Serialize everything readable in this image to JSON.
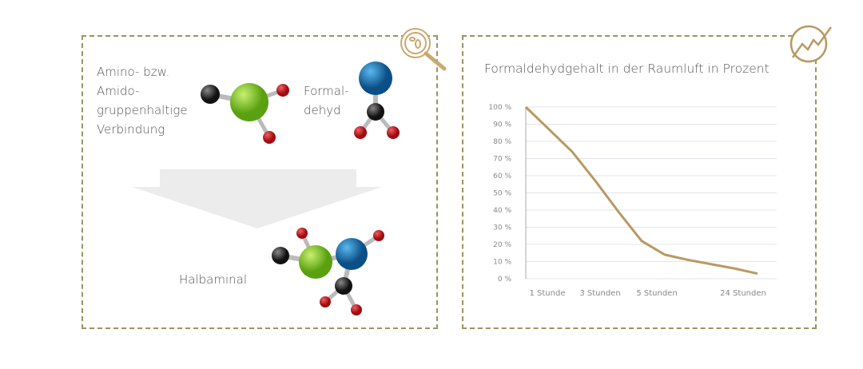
{
  "left_panel": {
    "reactant1_label": [
      "Amino- bzw.",
      "Amido-",
      "gruppenhaltige",
      "Verbindung"
    ],
    "reactant2_label": [
      "Formal-",
      "dehyd"
    ],
    "product_label": "Halbaminal",
    "icon": "magnifier-bacteria-icon"
  },
  "right_panel": {
    "icon": "trend-chart-icon"
  },
  "colors": {
    "accent": "#b79a62",
    "border": "#9a9460",
    "green": "#7cc520",
    "blue": "#1f6fa8",
    "red": "#c0141a",
    "carbon": "#333333"
  },
  "chart_data": {
    "type": "line",
    "title": "Formaldehydgehalt in der Raumluft in Prozent",
    "yticks": [
      "0 %",
      "10 %",
      "20 %",
      "30 %",
      "40 %",
      "50 %",
      "60 %",
      "70 %",
      "80 %",
      "90 %",
      "100 %"
    ],
    "ylim": [
      0,
      100
    ],
    "xticks": [
      "1 Stunde",
      "3 Stunden",
      "5 Stunden",
      "24 Stunden"
    ],
    "grid": true,
    "series": [
      {
        "values": [
          100,
          87,
          74,
          57,
          39,
          22,
          14,
          11,
          8.5,
          6,
          3
        ]
      }
    ]
  }
}
